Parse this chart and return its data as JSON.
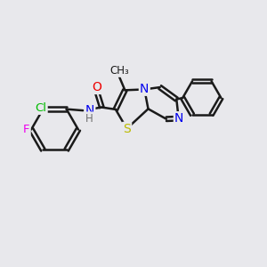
{
  "background_color": "#e8e8ec",
  "bond_color": "#1a1a1a",
  "bond_width": 1.8,
  "atom_colors": {
    "C": "#1a1a1a",
    "N": "#0000ee",
    "O": "#ee0000",
    "S": "#bbbb00",
    "Cl": "#00bb00",
    "F": "#ee00ee",
    "H": "#707070"
  },
  "font_size": 10,
  "fig_width": 3.0,
  "fig_height": 3.0,
  "dpi": 100
}
